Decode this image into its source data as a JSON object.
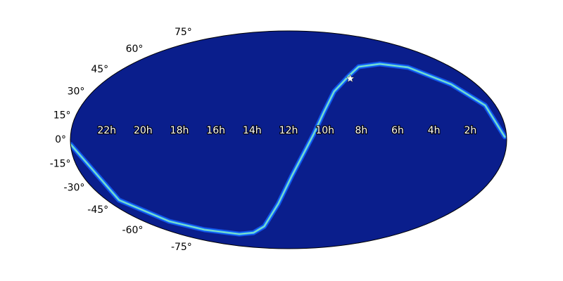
{
  "chart_data": {
    "type": "mollweide",
    "xlim": [
      24,
      0
    ],
    "ylim": [
      -90,
      90
    ],
    "background": "#0a1e8c",
    "xticks": [
      {
        "value": 22,
        "label": "22h"
      },
      {
        "value": 20,
        "label": "20h"
      },
      {
        "value": 18,
        "label": "18h"
      },
      {
        "value": 16,
        "label": "16h"
      },
      {
        "value": 14,
        "label": "14h"
      },
      {
        "value": 12,
        "label": "12h"
      },
      {
        "value": 10,
        "label": "10h"
      },
      {
        "value": 8,
        "label": "8h"
      },
      {
        "value": 6,
        "label": "6h"
      },
      {
        "value": 4,
        "label": "4h"
      },
      {
        "value": 2,
        "label": "2h"
      }
    ],
    "yticks": [
      {
        "value": 75,
        "label": "75°"
      },
      {
        "value": 60,
        "label": "60°"
      },
      {
        "value": 45,
        "label": "45°"
      },
      {
        "value": 30,
        "label": "30°"
      },
      {
        "value": 15,
        "label": "15°"
      },
      {
        "value": 0,
        "label": "0°"
      },
      {
        "value": -15,
        "label": "-15°"
      },
      {
        "value": -30,
        "label": "-30°"
      },
      {
        "value": -45,
        "label": "-45°"
      },
      {
        "value": -60,
        "label": "-60°"
      },
      {
        "value": -75,
        "label": "-75°"
      }
    ],
    "series": [
      {
        "color": "#3cc8ff",
        "x": [
          24,
          23.2,
          21.9,
          20.2,
          17.4,
          15.7,
          14.2,
          12.7,
          11.8,
          11.0,
          10.6,
          10.0,
          9.2,
          7.9,
          6.8,
          5.0,
          3.2,
          1.6,
          0.6,
          0.1
        ],
        "values": [
          -3,
          -41.9,
          -58.7,
          -66.2,
          -70.4,
          -69.1,
          -63.1,
          -44.6,
          -24.3,
          -5.2,
          4.2,
          18.5,
          33.1,
          44.6,
          51.7,
          54.0,
          51.2,
          38.3,
          23.3,
          2
        ]
      }
    ],
    "marker": {
      "x": 7.9,
      "y": 42.5,
      "color": "#ffffff"
    }
  }
}
